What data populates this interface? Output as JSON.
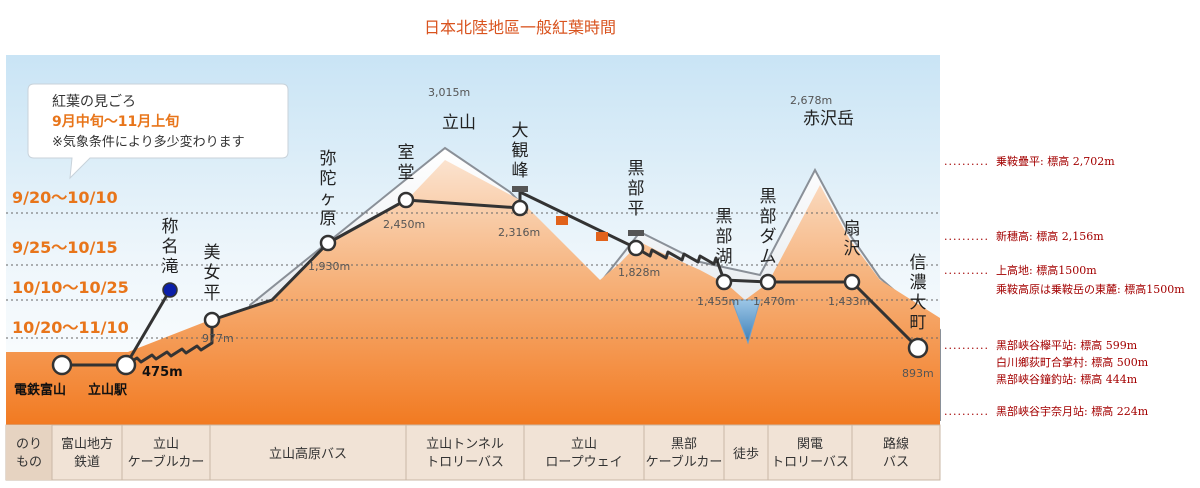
{
  "title": "日本北陸地區一般紅葉時間",
  "callout": {
    "heading": "紅葉の見ごろ",
    "period": "9月中旬〜11月上旬",
    "note": "※気象条件により多少変わります"
  },
  "periods": [
    "9/20〜10/10",
    "9/25〜10/15",
    "10/10〜10/25",
    "10/20〜11/10"
  ],
  "peaks": [
    {
      "name": "立山",
      "elev": "3,015m"
    },
    {
      "name": "赤沢岳",
      "elev": "2,678m"
    }
  ],
  "stations": [
    {
      "name": "電鉄富山",
      "elev": ""
    },
    {
      "name": "立山駅",
      "elev": "475m"
    },
    {
      "name": "称名滝",
      "elev": ""
    },
    {
      "name": "美女平",
      "elev": "977m"
    },
    {
      "name": "弥陀ヶ原",
      "elev": "1,930m"
    },
    {
      "name": "室堂",
      "elev": "2,450m"
    },
    {
      "name": "大観峰",
      "elev": "2,316m"
    },
    {
      "name": "黒部平",
      "elev": "1,828m"
    },
    {
      "name": "黒部湖",
      "elev": "1,455m"
    },
    {
      "name": "黒部ダム",
      "elev": "1,470m"
    },
    {
      "name": "扇沢",
      "elev": "1,433m"
    },
    {
      "name": "信濃大町",
      "elev": "893m"
    }
  ],
  "transport": [
    {
      "lines": [
        "のり",
        "もの"
      ]
    },
    {
      "lines": [
        "富山地方",
        "鉄道"
      ]
    },
    {
      "lines": [
        "立山",
        "ケーブルカー"
      ]
    },
    {
      "lines": [
        "立山高原バス"
      ]
    },
    {
      "lines": [
        "立山トンネル",
        "トロリーバス"
      ]
    },
    {
      "lines": [
        "立山",
        "ロープウェイ"
      ]
    },
    {
      "lines": [
        "黒部",
        "ケーブルカー"
      ]
    },
    {
      "lines": [
        "徒歩"
      ]
    },
    {
      "lines": [
        "関電",
        "トロリーバス"
      ]
    },
    {
      "lines": [
        "路線",
        "バス"
      ]
    }
  ],
  "reference": {
    "dots": "..........",
    "entries": [
      [
        "乗鞍疊平: 標高 2,702m"
      ],
      [
        "新穗高: 標高 2,156m"
      ],
      [
        "上高地: 標高1500m",
        "乘鞍高原は乗鞍岳の東麓: 標高1500m"
      ],
      [
        "黑部峽谷欅平站: 標高 599m",
        "白川鄉荻町合掌村: 標高 500m",
        "黑部峽谷鐘釣站: 標高 444m"
      ],
      [
        "黑部峽谷宇奈月站: 標高 224m"
      ]
    ]
  },
  "colors": {
    "title": "#d9531e",
    "period": "#e8751a",
    "route": "#333333",
    "reference": "#a30000",
    "lake_station": "#0b1fa8"
  }
}
